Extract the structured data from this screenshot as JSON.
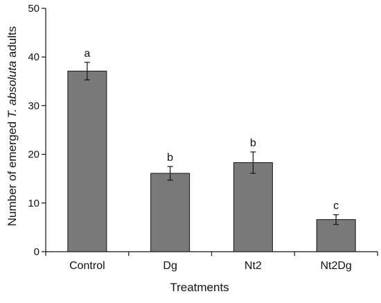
{
  "chart_data": {
    "type": "bar",
    "xlabel": "Treatments",
    "ylabel": {
      "prefix": "Number of emerged ",
      "italic": "T. absoluta",
      "suffix": " adults"
    },
    "ylim": [
      0,
      50
    ],
    "yticks": [
      0,
      10,
      20,
      30,
      40,
      50
    ],
    "grid": false,
    "legend": "none",
    "categories": [
      "Control",
      "Dg",
      "Nt2",
      "Nt2Dg"
    ],
    "values": [
      37.1,
      16.1,
      18.3,
      6.6
    ],
    "error": [
      1.8,
      1.4,
      2.2,
      1.0
    ],
    "significance_letters": [
      "a",
      "b",
      "b",
      "c"
    ],
    "colors": {
      "bar_fill": "#7a7a7a",
      "bar_stroke": "#111111",
      "axis": "#111111"
    }
  }
}
